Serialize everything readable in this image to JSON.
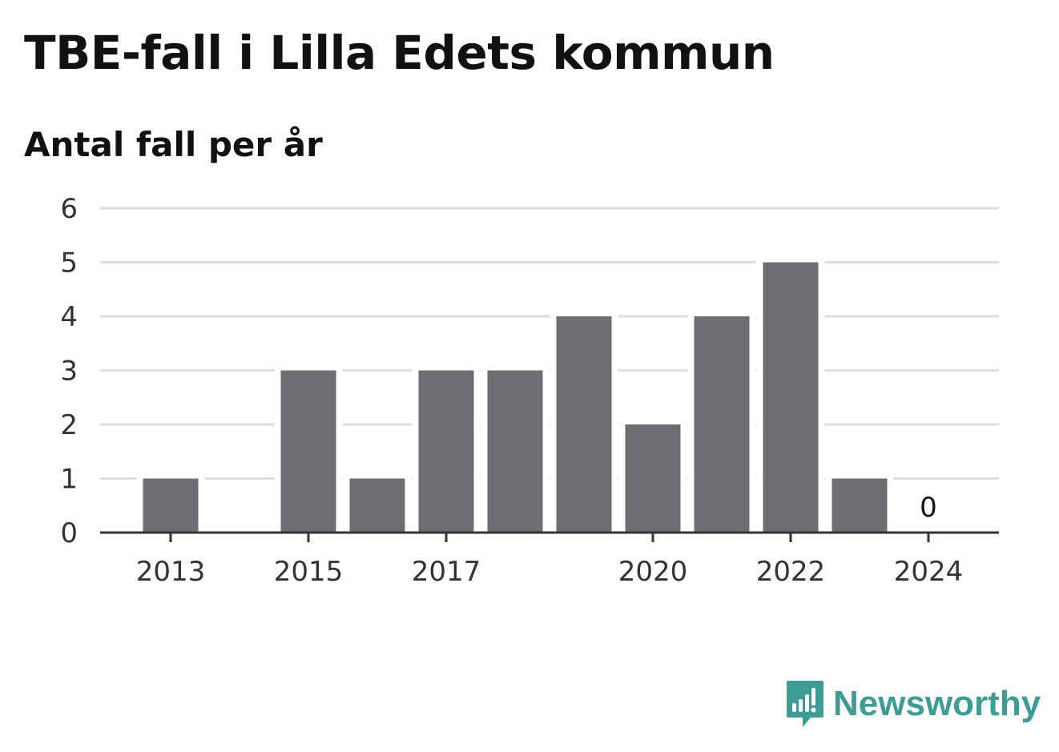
{
  "header": {
    "title": "TBE-fall i Lilla Edets kommun",
    "subtitle": "Antal fall per år"
  },
  "brand": {
    "name": "Newsworthy",
    "icon": "newsworthy-logo-icon",
    "color": "#3d9c95"
  },
  "colors": {
    "bar": "#6e6d73",
    "grid": "#dddddd",
    "axis": "#333333",
    "text": "#333333"
  },
  "chart_data": {
    "type": "bar",
    "categories": [
      "2013",
      "2014",
      "2015",
      "2016",
      "2017",
      "2018",
      "2019",
      "2020",
      "2021",
      "2022",
      "2023",
      "2024"
    ],
    "values": [
      1,
      0,
      3,
      1,
      3,
      3,
      4,
      2,
      4,
      5,
      1,
      0
    ],
    "x_tick_labels": [
      "2013",
      "2015",
      "2017",
      "2020",
      "2022",
      "2024"
    ],
    "y_ticks": [
      0,
      1,
      2,
      3,
      4,
      5,
      6
    ],
    "ylim": [
      0,
      6
    ],
    "data_labels": [
      {
        "category": "2024",
        "text": "0"
      }
    ],
    "title": "TBE-fall i Lilla Edets kommun",
    "subtitle": "Antal fall per år",
    "xlabel": "",
    "ylabel": "",
    "grid": true,
    "legend": "none"
  }
}
